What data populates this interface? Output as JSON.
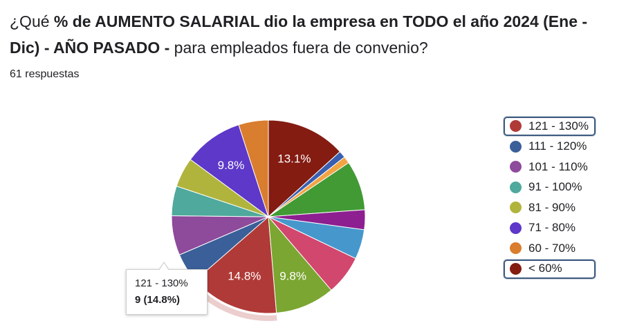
{
  "question": {
    "seg1": "¿Qué ",
    "seg2": "% de AUMENTO SALARIAL dio la empresa en TODO el año 2024 (Ene - Dic) - AÑO PASADO -",
    "seg3": " para empleados fuera de convenio?"
  },
  "responses_label": "61 respuestas",
  "tooltip": {
    "category": "121 - 130%",
    "value": "9 (14.8%)"
  },
  "legend": [
    {
      "label": "121 - 130%",
      "color": "#b03a37",
      "highlighted": true
    },
    {
      "label": "111 - 120%",
      "color": "#3b5f99",
      "highlighted": false
    },
    {
      "label": "101 - 110%",
      "color": "#8e4a9b",
      "highlighted": false
    },
    {
      "label": "91 - 100%",
      "color": "#4fa99c",
      "highlighted": false
    },
    {
      "label": "81 - 90%",
      "color": "#b1b43c",
      "highlighted": false
    },
    {
      "label": "71 - 80%",
      "color": "#5d38c9",
      "highlighted": false
    },
    {
      "label": "60 - 70%",
      "color": "#d97d2f",
      "highlighted": false
    },
    {
      "label": "< 60%",
      "color": "#841c12",
      "highlighted": true
    }
  ],
  "chart_data": {
    "type": "pie",
    "total": 61,
    "slices": [
      {
        "label": "< 60%",
        "value": 8,
        "percent": 13.1,
        "color": "#841c12"
      },
      {
        "label": "",
        "value": 0.7,
        "percent": 1.2,
        "color": "#3a5fb0"
      },
      {
        "label": "",
        "value": 0.7,
        "percent": 1.2,
        "color": "#f2a444"
      },
      {
        "label": "",
        "value": 5,
        "percent": 8.2,
        "color": "#419a34"
      },
      {
        "label": "",
        "value": 2,
        "percent": 3.3,
        "color": "#8d1f90"
      },
      {
        "label": "",
        "value": 3,
        "percent": 4.9,
        "color": "#4698cc"
      },
      {
        "label": "",
        "value": 4,
        "percent": 6.6,
        "color": "#d2476d"
      },
      {
        "label": "",
        "value": 6,
        "percent": 9.8,
        "color": "#7ba632"
      },
      {
        "label": "121 - 130%",
        "value": 9,
        "percent": 14.8,
        "color": "#b03a37"
      },
      {
        "label": "111 - 120%",
        "value": 3,
        "percent": 4.9,
        "color": "#3b5f99"
      },
      {
        "label": "101 - 110%",
        "value": 4,
        "percent": 6.6,
        "color": "#8e4a9b"
      },
      {
        "label": "91 - 100%",
        "value": 3,
        "percent": 4.9,
        "color": "#4fa99c"
      },
      {
        "label": "81 - 90%",
        "value": 3,
        "percent": 4.9,
        "color": "#b1b43c"
      },
      {
        "label": "71 - 80%",
        "value": 6,
        "percent": 9.8,
        "color": "#5d38c9"
      },
      {
        "label": "60 - 70%",
        "value": 3,
        "percent": 4.9,
        "color": "#d97d2f"
      }
    ],
    "data_labels": [
      "13.1%",
      "9.8%",
      "14.8%",
      "9.8%"
    ],
    "selected": "121 - 130%",
    "legend_position": "right"
  }
}
